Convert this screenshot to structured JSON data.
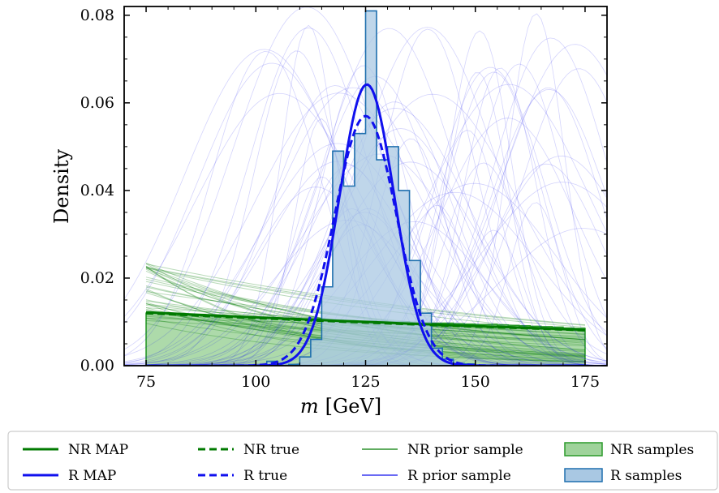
{
  "chart_data": {
    "type": "histogram_with_curves",
    "xlabel_var": "m",
    "xlabel_unit": "[GeV]",
    "ylabel": "Density",
    "xlim": [
      70,
      180
    ],
    "ylim": [
      0,
      0.082
    ],
    "xticks": [
      75,
      100,
      125,
      150,
      175
    ],
    "yticks": [
      0.0,
      0.02,
      0.04,
      0.06,
      0.08
    ],
    "ytick_labels": [
      "0.00",
      "0.02",
      "0.04",
      "0.06",
      "0.08"
    ],
    "r_hist": {
      "bin_edges": [
        75,
        77.5,
        80,
        82.5,
        85,
        87.5,
        90,
        92.5,
        95,
        97.5,
        100,
        102.5,
        105,
        107.5,
        110,
        112.5,
        115,
        117.5,
        120,
        122.5,
        125,
        127.5,
        130,
        132.5,
        135,
        137.5,
        140,
        142.5,
        145,
        147.5,
        150,
        152.5,
        155,
        157.5,
        160,
        162.5,
        165,
        167.5,
        170,
        172.5,
        175
      ],
      "values": [
        0,
        0,
        0,
        0,
        0,
        0,
        0,
        0,
        0,
        0,
        0,
        0.001,
        0,
        0.0003,
        0.002,
        0.006,
        0.018,
        0.049,
        0.041,
        0.053,
        0.081,
        0.047,
        0.05,
        0.04,
        0.024,
        0.012,
        0.004,
        0.0015,
        0.0005,
        0.0004,
        0,
        0,
        0,
        0,
        0,
        0,
        0,
        0,
        0,
        0
      ]
    },
    "nr_hist": {
      "values": [
        0.012,
        0.012,
        0.0118,
        0.0117,
        0.0115,
        0.0114,
        0.0113,
        0.0112,
        0.0112,
        0.0112,
        0.011,
        0.0109,
        0.0108,
        0.0108,
        0.0107,
        0.0106,
        0.0104,
        0.0104,
        0.0103,
        0.0102,
        0.0102,
        0.0101,
        0.01,
        0.01,
        0.0099,
        0.0098,
        0.0097,
        0.0097,
        0.0096,
        0.0095,
        0.0094,
        0.0094,
        0.0093,
        0.0092,
        0.0091,
        0.009,
        0.0089,
        0.0088,
        0.0086,
        0.0085
      ]
    },
    "series": [
      {
        "name": "NR MAP",
        "kind": "exponential",
        "y_at_75": 0.0122,
        "y_at_175": 0.0082
      },
      {
        "name": "NR true",
        "kind": "exponential",
        "y_at_75": 0.012,
        "y_at_175": 0.0081
      },
      {
        "name": "R MAP",
        "kind": "gaussian",
        "mean": 125.3,
        "sigma": 6.2,
        "peak": 0.0642
      },
      {
        "name": "R true",
        "kind": "gaussian",
        "mean": 125.0,
        "sigma": 7.0,
        "peak": 0.057
      }
    ],
    "nr_prior_samples": {
      "count": 40,
      "y_at_75_range": [
        0.0095,
        0.0235
      ],
      "y_at_175_range": [
        0.0005,
        0.0098
      ]
    },
    "r_prior_samples": {
      "count": 60,
      "mean_range": [
        100,
        175
      ],
      "sigma_range": [
        6,
        20
      ],
      "peak_range": [
        0.03,
        0.083
      ]
    },
    "legend": [
      {
        "label": "NR MAP",
        "style": "solid",
        "color": "#007a00"
      },
      {
        "label": "NR true",
        "style": "dashed",
        "color": "#007a00"
      },
      {
        "label": "NR prior sample",
        "style": "thin",
        "color": "#007a00"
      },
      {
        "label": "NR samples",
        "style": "patch",
        "color": "#9fd39b",
        "edge": "#2a9a2a"
      },
      {
        "label": "R MAP",
        "style": "solid",
        "color": "#1010ee"
      },
      {
        "label": "R true",
        "style": "dashed",
        "color": "#1010ee"
      },
      {
        "label": "R prior sample",
        "style": "thin",
        "color": "#1010ee"
      },
      {
        "label": "R samples",
        "style": "patch",
        "color": "#a9c8e3",
        "edge": "#1f6fae"
      }
    ],
    "legend_position": "below",
    "colors": {
      "nr": "#007a00",
      "r": "#1010ee",
      "nr_fill": "#9fd39b",
      "r_fill": "#a9c8e3",
      "r_edge": "#1f6fae"
    }
  }
}
